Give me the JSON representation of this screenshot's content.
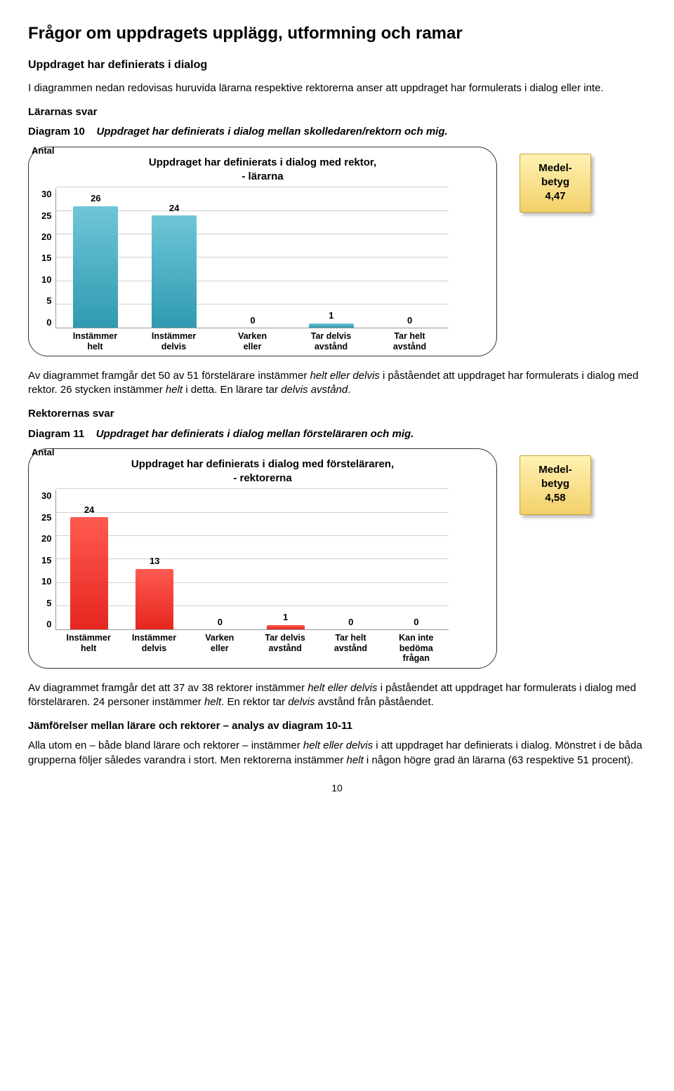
{
  "title": "Frågor om uppdragets upplägg, utformning och ramar",
  "subheading": "Uppdraget har definierats i dialog",
  "intro_text": "I diagrammen nedan redovisas huruvida lärarna respektive rektorerna anser att uppdraget har formulerats i dialog eller inte.",
  "teachers_label": "Lärarnas svar",
  "rectors_label": "Rektorernas svar",
  "diag10": {
    "number": "Diagram 10",
    "text": "Uppdraget har definierats i dialog mellan skolledaren/rektorn och mig."
  },
  "diag11": {
    "number": "Diagram 11",
    "text": "Uppdraget har definierats i dialog mellan försteläraren och mig."
  },
  "chart1": {
    "type": "bar",
    "title_line1": "Uppdraget har definierats i dialog med rektor,",
    "title_line2": "- lärarna",
    "y_unit": "Antal",
    "categories": [
      "Instämmer helt",
      "Instämmer delvis",
      "Varken eller",
      "Tar delvis avstånd",
      "Tar helt avstånd"
    ],
    "values": [
      26,
      24,
      0,
      1,
      0
    ],
    "bar_color": "#2f9ab0",
    "bar_color_top": "#6fc6d8",
    "ylim": [
      0,
      30
    ],
    "ytick_step": 5,
    "grid_color": "#cfcfcf",
    "background_color": "#ffffff",
    "value_fontsize": 13,
    "label_fontsize": 12.5
  },
  "badge1": {
    "label": "Medel-betyg",
    "value": "4,47",
    "bg_top": "#fff2b3",
    "bg_bottom": "#f3d06a"
  },
  "para_after_chart1_html": "Av diagrammet framgår det 50 av 51 förstelärare instämmer <span class='italic'>helt eller delvis</span> i påståendet att uppdraget har formulerats i dialog med rektor. 26 stycken instämmer <span class='italic'>helt</span> i detta. En lärare tar <span class='italic'>delvis avstånd</span>.",
  "chart2": {
    "type": "bar",
    "title_line1": "Uppdraget har definierats i dialog  med försteläraren,",
    "title_line2": "- rektorerna",
    "y_unit": "Antal",
    "categories": [
      "Instämmer helt",
      "Instämmer delvis",
      "Varken eller",
      "Tar delvis avstånd",
      "Tar helt avstånd",
      "Kan inte bedöma frågan"
    ],
    "values": [
      24,
      13,
      0,
      1,
      0,
      0
    ],
    "bar_color": "#e5261f",
    "bar_color_top": "#ff5a50",
    "ylim": [
      0,
      30
    ],
    "ytick_step": 5,
    "grid_color": "#cfcfcf",
    "background_color": "#ffffff",
    "value_fontsize": 13,
    "label_fontsize": 12.5
  },
  "badge2": {
    "label": "Medel-betyg",
    "value": "4,58",
    "bg_top": "#fff2b3",
    "bg_bottom": "#f3d06a"
  },
  "para_after_chart2_html": "Av diagrammet framgår det att 37 av 38 rektorer instämmer <span class='italic'>helt eller delvis</span> i påståendet att uppdraget har formulerats i dialog med försteläraren. 24 personer instämmer <span class='italic'>helt</span>. En rektor tar <span class='italic'>delvis</span> avstånd från påståendet.",
  "compare_heading": "Jämförelser mellan lärare och rektorer – analys av diagram 10-11",
  "compare_text_html": "Alla utom en – både bland lärare och rektorer – instämmer <span class='italic'>helt eller delvis</span> i att uppdraget har definierats i dialog. Mönstret i de båda grupperna följer således varandra i stort. Men rektorerna instämmer <span class='italic'>helt</span> i någon högre grad än lärarna (63 respektive 51 procent).",
  "page_number": "10"
}
